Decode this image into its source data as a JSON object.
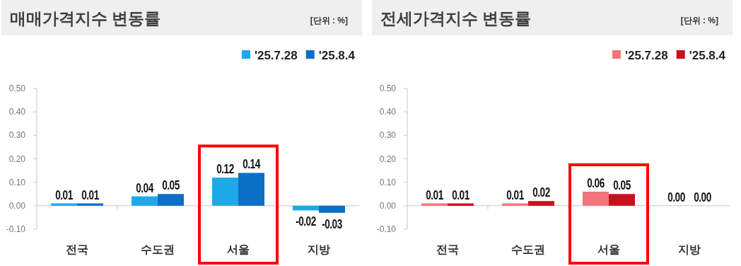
{
  "chart_data": [
    {
      "type": "bar",
      "title": "매매가격지수 변동률",
      "subtitle": "[단위 : %]",
      "categories": [
        "전국",
        "수도권",
        "서울",
        "지방"
      ],
      "series": [
        {
          "name": "'25.7.28",
          "color": "#1fa8e8",
          "values": [
            0.01,
            0.04,
            0.12,
            -0.02
          ],
          "value_labels": [
            "0.01",
            "0.04",
            "0.12",
            "-0.02"
          ]
        },
        {
          "name": "'25.8.4",
          "color": "#0b6fc6",
          "values": [
            0.01,
            0.05,
            0.14,
            -0.03
          ],
          "value_labels": [
            "0.01",
            "0.05",
            "0.14",
            "-0.03"
          ]
        }
      ],
      "ylim": [
        -0.1,
        0.5
      ],
      "yticks": [
        {
          "value": -0.1,
          "label": "-0.10"
        },
        {
          "value": 0,
          "label": "0.00"
        },
        {
          "value": 0.1,
          "label": "0.10"
        },
        {
          "value": 0.2,
          "label": "0.20"
        },
        {
          "value": 0.3,
          "label": "0.30"
        },
        {
          "value": 0.4,
          "label": "0.40"
        },
        {
          "value": 0.5,
          "label": "0.50"
        }
      ],
      "legend": "top right"
    },
    {
      "type": "bar",
      "title": "전세가격지수 변동률",
      "subtitle": "[단위 : %]",
      "categories": [
        "전국",
        "수도권",
        "서울",
        "지방"
      ],
      "series": [
        {
          "name": "'25.7.28",
          "color": "#f2737b",
          "values": [
            0.01,
            0.01,
            0.06,
            0
          ],
          "value_labels": [
            "0.01",
            "0.01",
            "0.06",
            "0.00"
          ]
        },
        {
          "name": "'25.8.4",
          "color": "#c9111c",
          "values": [
            0.01,
            0.02,
            0.05,
            0
          ],
          "value_labels": [
            "0.01",
            "0.02",
            "0.05",
            "0.00"
          ]
        }
      ],
      "ylim": [
        -0.1,
        0.5
      ],
      "yticks": [
        {
          "value": -0.1,
          "label": "-0.10"
        },
        {
          "value": 0,
          "label": "0.00"
        },
        {
          "value": 0.1,
          "label": "0.10"
        },
        {
          "value": 0.2,
          "label": "0.20"
        },
        {
          "value": 0.3,
          "label": "0.30"
        },
        {
          "value": 0.4,
          "label": "0.40"
        },
        {
          "value": 0.5,
          "label": "0.50"
        }
      ],
      "legend": "top right"
    }
  ]
}
